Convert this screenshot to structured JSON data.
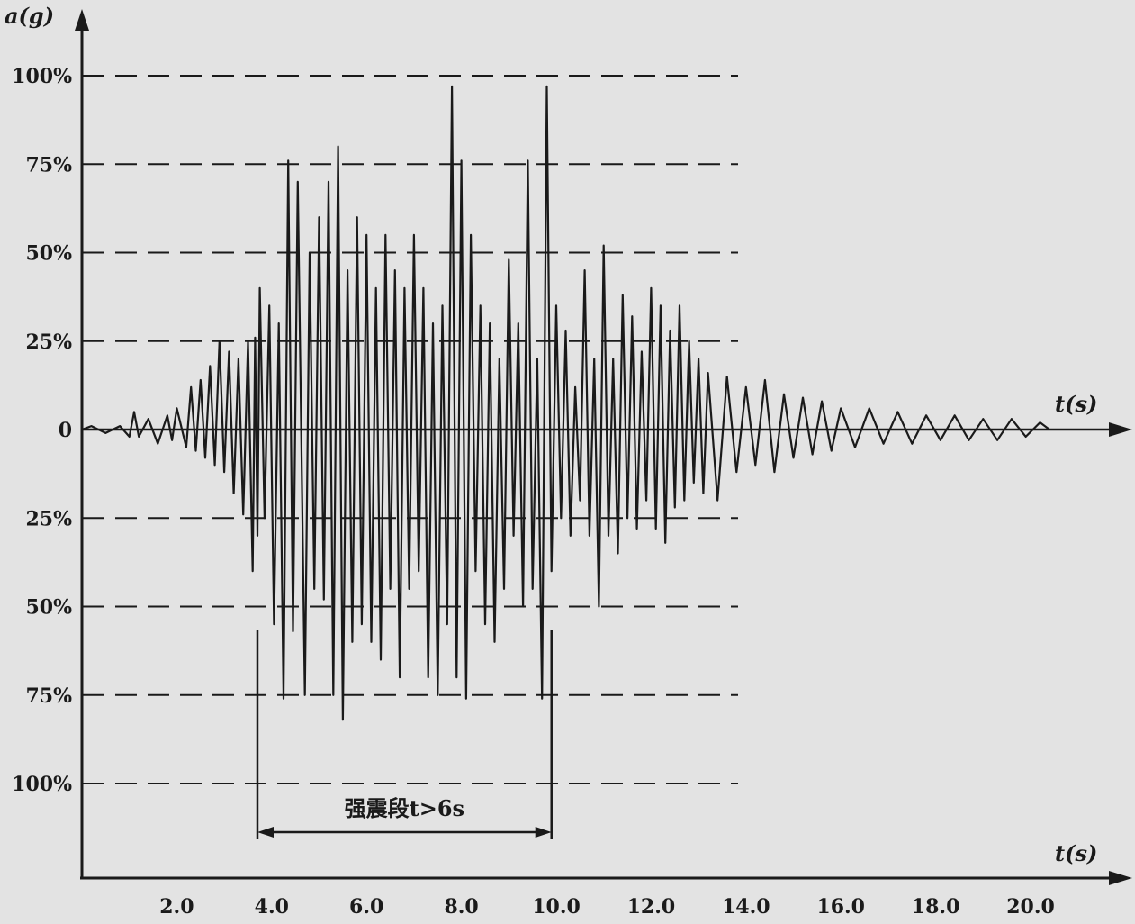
{
  "chart_data": {
    "type": "line",
    "title": "",
    "ylabel": "a(g)",
    "xlabel_mid": "t(s)",
    "xlabel_bottom": "t(s)",
    "xlim": [
      0,
      21
    ],
    "ylim": [
      -100,
      100
    ],
    "x_ticks": [
      "2.0",
      "4.0",
      "6.0",
      "8.0",
      "10.0",
      "12.0",
      "14.0",
      "16.0",
      "18.0",
      "20.0"
    ],
    "x_tick_values": [
      2,
      4,
      6,
      8,
      10,
      12,
      14,
      16,
      18,
      20
    ],
    "y_ticks": [
      {
        "value": 100,
        "label": "100%"
      },
      {
        "value": 75,
        "label": "75%"
      },
      {
        "value": 50,
        "label": "50%"
      },
      {
        "value": 25,
        "label": "25%"
      },
      {
        "value": 0,
        "label": "0"
      },
      {
        "value": -25,
        "label": "25%"
      },
      {
        "value": -50,
        "label": "50%"
      },
      {
        "value": -75,
        "label": "75%"
      },
      {
        "value": -100,
        "label": "100%"
      }
    ],
    "reference_lines_pct": [
      100,
      75,
      50,
      25,
      -25,
      -50,
      -75,
      -100
    ],
    "strong_motion": {
      "label": "强震段t>6s",
      "start": 3.7,
      "end": 9.9
    },
    "series": [
      {
        "values": [
          [
            0.0,
            0
          ],
          [
            0.2,
            1
          ],
          [
            0.5,
            -1
          ],
          [
            0.8,
            1
          ],
          [
            1.0,
            -2
          ],
          [
            1.1,
            5
          ],
          [
            1.2,
            -2
          ],
          [
            1.4,
            3
          ],
          [
            1.6,
            -4
          ],
          [
            1.8,
            4
          ],
          [
            1.9,
            -3
          ],
          [
            2.0,
            6
          ],
          [
            2.2,
            -5
          ],
          [
            2.3,
            12
          ],
          [
            2.4,
            -6
          ],
          [
            2.5,
            14
          ],
          [
            2.6,
            -8
          ],
          [
            2.7,
            18
          ],
          [
            2.8,
            -10
          ],
          [
            2.9,
            25
          ],
          [
            3.0,
            -12
          ],
          [
            3.1,
            22
          ],
          [
            3.2,
            -18
          ],
          [
            3.3,
            20
          ],
          [
            3.4,
            -24
          ],
          [
            3.5,
            25
          ],
          [
            3.6,
            -40
          ],
          [
            3.65,
            26
          ],
          [
            3.7,
            -30
          ],
          [
            3.75,
            40
          ],
          [
            3.85,
            -25
          ],
          [
            3.95,
            35
          ],
          [
            4.05,
            -55
          ],
          [
            4.15,
            30
          ],
          [
            4.25,
            -76
          ],
          [
            4.35,
            76
          ],
          [
            4.45,
            -57
          ],
          [
            4.55,
            70
          ],
          [
            4.7,
            -75
          ],
          [
            4.8,
            50
          ],
          [
            4.9,
            -45
          ],
          [
            5.0,
            60
          ],
          [
            5.1,
            -48
          ],
          [
            5.2,
            70
          ],
          [
            5.3,
            -75
          ],
          [
            5.4,
            80
          ],
          [
            5.5,
            -82
          ],
          [
            5.6,
            45
          ],
          [
            5.7,
            -60
          ],
          [
            5.8,
            60
          ],
          [
            5.9,
            -55
          ],
          [
            6.0,
            55
          ],
          [
            6.1,
            -60
          ],
          [
            6.2,
            40
          ],
          [
            6.3,
            -65
          ],
          [
            6.4,
            55
          ],
          [
            6.5,
            -45
          ],
          [
            6.6,
            45
          ],
          [
            6.7,
            -70
          ],
          [
            6.8,
            40
          ],
          [
            6.9,
            -45
          ],
          [
            7.0,
            55
          ],
          [
            7.1,
            -40
          ],
          [
            7.2,
            40
          ],
          [
            7.3,
            -70
          ],
          [
            7.4,
            30
          ],
          [
            7.5,
            -75
          ],
          [
            7.6,
            35
          ],
          [
            7.7,
            -55
          ],
          [
            7.8,
            97
          ],
          [
            7.9,
            -70
          ],
          [
            8.0,
            76
          ],
          [
            8.1,
            -76
          ],
          [
            8.2,
            55
          ],
          [
            8.3,
            -40
          ],
          [
            8.4,
            35
          ],
          [
            8.5,
            -55
          ],
          [
            8.6,
            30
          ],
          [
            8.7,
            -60
          ],
          [
            8.8,
            20
          ],
          [
            8.9,
            -45
          ],
          [
            9.0,
            48
          ],
          [
            9.1,
            -30
          ],
          [
            9.2,
            30
          ],
          [
            9.3,
            -50
          ],
          [
            9.4,
            76
          ],
          [
            9.5,
            -45
          ],
          [
            9.6,
            20
          ],
          [
            9.7,
            -76
          ],
          [
            9.8,
            97
          ],
          [
            9.9,
            -40
          ],
          [
            10.0,
            35
          ],
          [
            10.1,
            -25
          ],
          [
            10.2,
            28
          ],
          [
            10.3,
            -30
          ],
          [
            10.4,
            12
          ],
          [
            10.5,
            -20
          ],
          [
            10.6,
            45
          ],
          [
            10.7,
            -30
          ],
          [
            10.8,
            20
          ],
          [
            10.9,
            -50
          ],
          [
            11.0,
            52
          ],
          [
            11.1,
            -30
          ],
          [
            11.2,
            20
          ],
          [
            11.3,
            -35
          ],
          [
            11.4,
            38
          ],
          [
            11.5,
            -25
          ],
          [
            11.6,
            32
          ],
          [
            11.7,
            -28
          ],
          [
            11.8,
            22
          ],
          [
            11.9,
            -20
          ],
          [
            12.0,
            40
          ],
          [
            12.1,
            -28
          ],
          [
            12.2,
            35
          ],
          [
            12.3,
            -32
          ],
          [
            12.4,
            28
          ],
          [
            12.5,
            -22
          ],
          [
            12.6,
            35
          ],
          [
            12.7,
            -20
          ],
          [
            12.8,
            25
          ],
          [
            12.9,
            -15
          ],
          [
            13.0,
            20
          ],
          [
            13.1,
            -18
          ],
          [
            13.2,
            16
          ],
          [
            13.4,
            -20
          ],
          [
            13.6,
            15
          ],
          [
            13.8,
            -12
          ],
          [
            14.0,
            12
          ],
          [
            14.2,
            -10
          ],
          [
            14.4,
            14
          ],
          [
            14.6,
            -12
          ],
          [
            14.8,
            10
          ],
          [
            15.0,
            -8
          ],
          [
            15.2,
            9
          ],
          [
            15.4,
            -7
          ],
          [
            15.6,
            8
          ],
          [
            15.8,
            -6
          ],
          [
            16.0,
            6
          ],
          [
            16.3,
            -5
          ],
          [
            16.6,
            6
          ],
          [
            16.9,
            -4
          ],
          [
            17.2,
            5
          ],
          [
            17.5,
            -4
          ],
          [
            17.8,
            4
          ],
          [
            18.1,
            -3
          ],
          [
            18.4,
            4
          ],
          [
            18.7,
            -3
          ],
          [
            19.0,
            3
          ],
          [
            19.3,
            -3
          ],
          [
            19.6,
            3
          ],
          [
            19.9,
            -2
          ],
          [
            20.2,
            2
          ],
          [
            20.4,
            0
          ]
        ]
      }
    ]
  }
}
